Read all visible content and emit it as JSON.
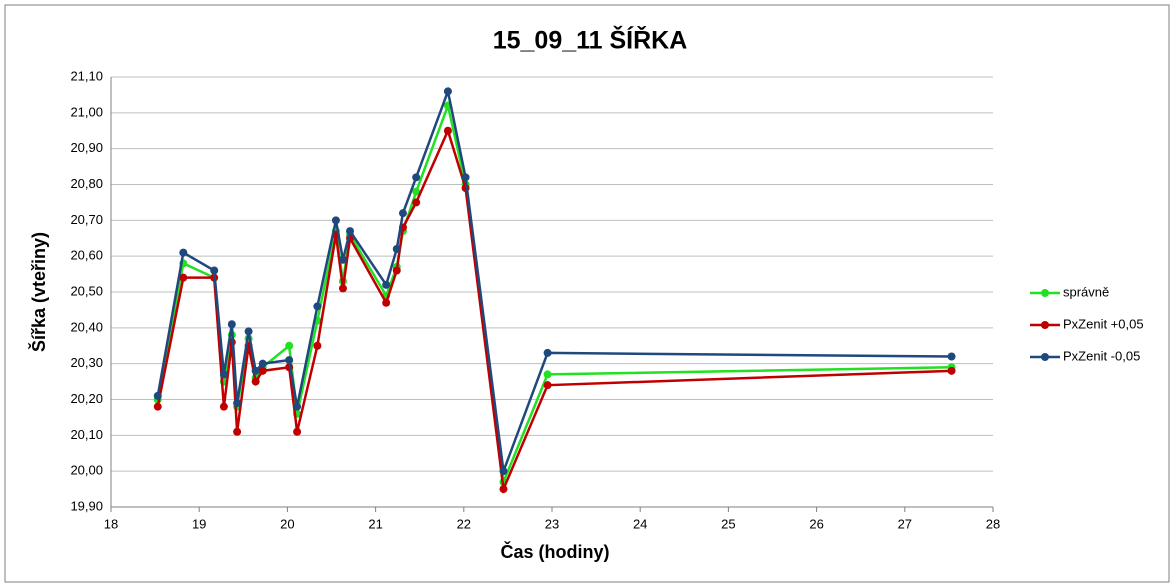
{
  "chart_data": {
    "type": "line",
    "title": "15_09_11 ŠÍŘKA",
    "xlabel": "Čas (hodiny)",
    "ylabel": "Šířka (vteřiny)",
    "x": [
      18.53,
      18.82,
      19.17,
      19.28,
      19.37,
      19.43,
      19.56,
      19.64,
      19.72,
      20.02,
      20.11,
      20.34,
      20.55,
      20.63,
      20.71,
      21.12,
      21.24,
      21.31,
      21.46,
      21.82,
      22.02,
      22.45,
      22.95,
      27.53
    ],
    "series": [
      {
        "name": "správně",
        "color": "#22e022",
        "values": [
          20.2,
          20.58,
          20.54,
          20.25,
          20.38,
          20.18,
          20.37,
          20.26,
          20.29,
          20.35,
          20.16,
          20.42,
          20.67,
          20.53,
          20.66,
          20.49,
          20.57,
          20.67,
          20.78,
          21.02,
          20.8,
          19.97,
          20.27,
          20.29
        ]
      },
      {
        "name": "PxZenit +0,05",
        "color": "#c00000",
        "values": [
          20.18,
          20.54,
          20.54,
          20.18,
          20.36,
          20.11,
          20.35,
          20.25,
          20.28,
          20.29,
          20.11,
          20.35,
          20.66,
          20.51,
          20.65,
          20.47,
          20.56,
          20.68,
          20.75,
          20.95,
          20.79,
          19.95,
          20.24,
          20.28
        ]
      },
      {
        "name": "PxZenit -0,05",
        "color": "#1f497d",
        "values": [
          20.21,
          20.61,
          20.56,
          20.27,
          20.41,
          20.19,
          20.39,
          20.28,
          20.3,
          20.31,
          20.18,
          20.46,
          20.7,
          20.59,
          20.67,
          20.52,
          20.62,
          20.72,
          20.82,
          21.06,
          20.82,
          20.0,
          20.33,
          20.32
        ]
      }
    ],
    "xlim": [
      18,
      28
    ],
    "xticks": [
      18,
      19,
      20,
      21,
      22,
      23,
      24,
      25,
      26,
      27,
      28
    ],
    "ylim": [
      19.9,
      21.1
    ],
    "yticks": [
      {
        "value": 19.9,
        "label": "19,90"
      },
      {
        "value": 20.0,
        "label": "20,00"
      },
      {
        "value": 20.1,
        "label": "20,10"
      },
      {
        "value": 20.2,
        "label": "20,20"
      },
      {
        "value": 20.3,
        "label": "20,30"
      },
      {
        "value": 20.4,
        "label": "20,40"
      },
      {
        "value": 20.5,
        "label": "20,50"
      },
      {
        "value": 20.6,
        "label": "20,60"
      },
      {
        "value": 20.7,
        "label": "20,70"
      },
      {
        "value": 20.8,
        "label": "20,80"
      },
      {
        "value": 20.9,
        "label": "20,90"
      },
      {
        "value": 21.0,
        "label": "21,00"
      },
      {
        "value": 21.1,
        "label": "21,10"
      }
    ],
    "grid": true,
    "legend": "right"
  }
}
